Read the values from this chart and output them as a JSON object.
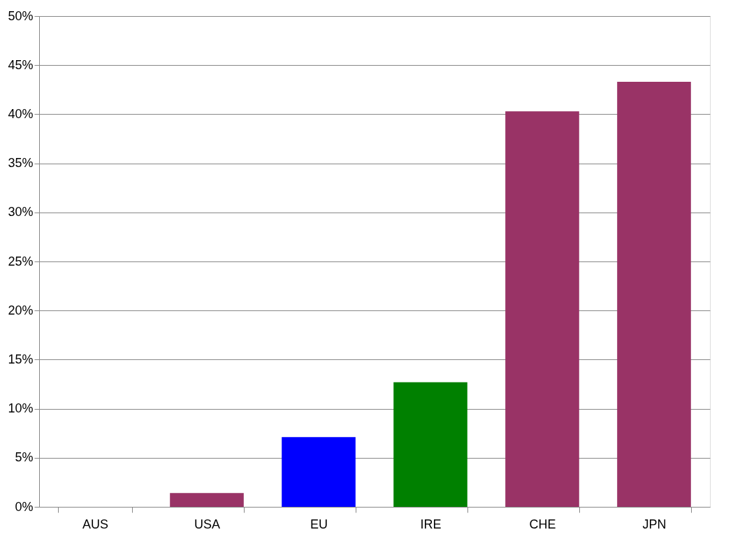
{
  "chart_data": {
    "type": "bar",
    "categories": [
      "AUS",
      "USA",
      "EU",
      "IRE",
      "CHE",
      "JPN"
    ],
    "values": [
      0,
      1.4,
      7.1,
      12.7,
      40.3,
      43.3
    ],
    "colors": [
      "#993366",
      "#993366",
      "#0000ff",
      "#008000",
      "#993366",
      "#993366"
    ],
    "ylim": [
      0,
      50
    ],
    "yticks": [
      {
        "value": 0,
        "label": "0%"
      },
      {
        "value": 5,
        "label": "5%"
      },
      {
        "value": 10,
        "label": "10%"
      },
      {
        "value": 15,
        "label": "15%"
      },
      {
        "value": 20,
        "label": "20%"
      },
      {
        "value": 25,
        "label": "25%"
      },
      {
        "value": 30,
        "label": "30%"
      },
      {
        "value": 35,
        "label": "35%"
      },
      {
        "value": 40,
        "label": "40%"
      },
      {
        "value": 45,
        "label": "45%"
      },
      {
        "value": 50,
        "label": "50%"
      }
    ],
    "grid": "y"
  }
}
